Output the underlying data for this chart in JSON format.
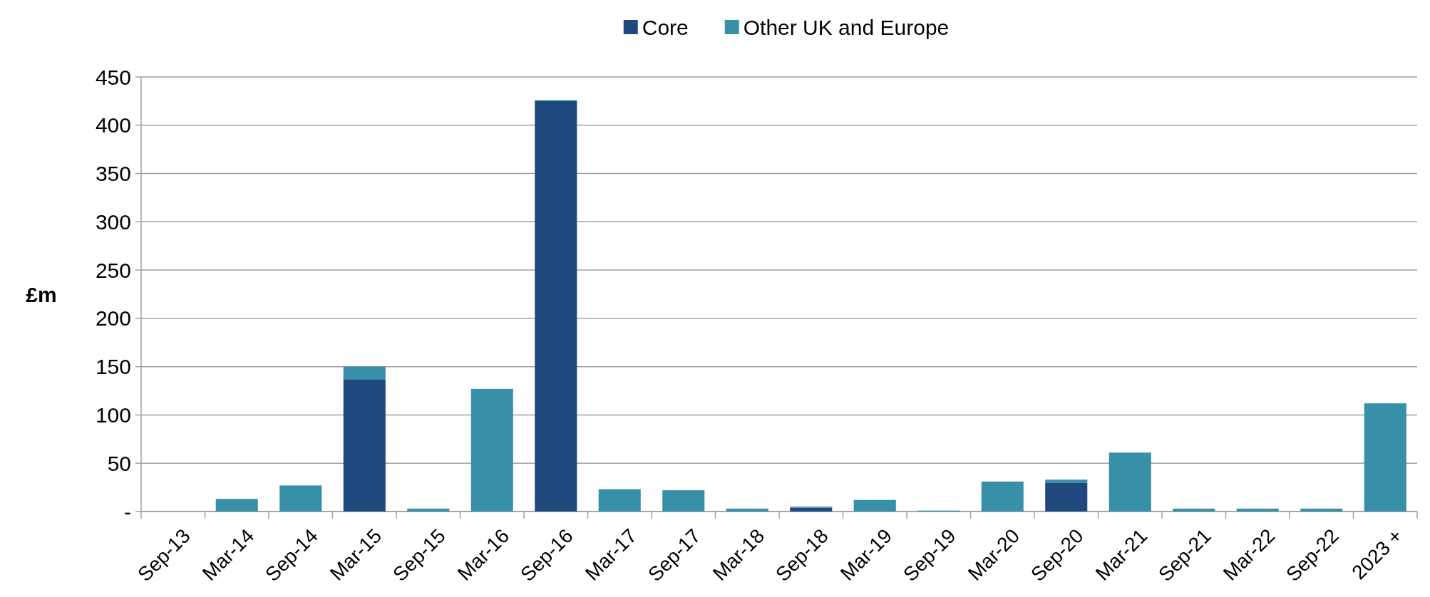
{
  "chart_data": {
    "type": "bar",
    "stacked": true,
    "ylabel": "£m",
    "categories": [
      "Sep-13",
      "Mar-14",
      "Sep-14",
      "Mar-15",
      "Sep-15",
      "Mar-16",
      "Sep-16",
      "Mar-17",
      "Sep-17",
      "Mar-18",
      "Sep-18",
      "Mar-19",
      "Sep-19",
      "Mar-20",
      "Sep-20",
      "Mar-21",
      "Sep-21",
      "Mar-22",
      "Sep-22",
      "2023 +"
    ],
    "series": [
      {
        "name": "Core",
        "color": "#1f497d",
        "values": [
          0,
          0,
          0,
          137,
          0,
          0,
          425,
          0,
          0,
          0,
          4,
          0,
          0,
          0,
          30,
          0,
          0,
          0,
          0,
          0
        ]
      },
      {
        "name": "Other UK and Europe",
        "color": "#3790a8",
        "values": [
          0,
          13,
          27,
          13,
          3,
          127,
          1,
          23,
          22,
          3,
          1,
          12,
          1,
          31,
          3,
          61,
          3,
          3,
          3,
          112
        ]
      }
    ],
    "ylim": [
      0,
      450
    ],
    "yticks": [
      {
        "value": 0,
        "label": "-"
      },
      50,
      100,
      150,
      200,
      250,
      300,
      350,
      400,
      450
    ],
    "grid": "y",
    "legend": "top"
  }
}
